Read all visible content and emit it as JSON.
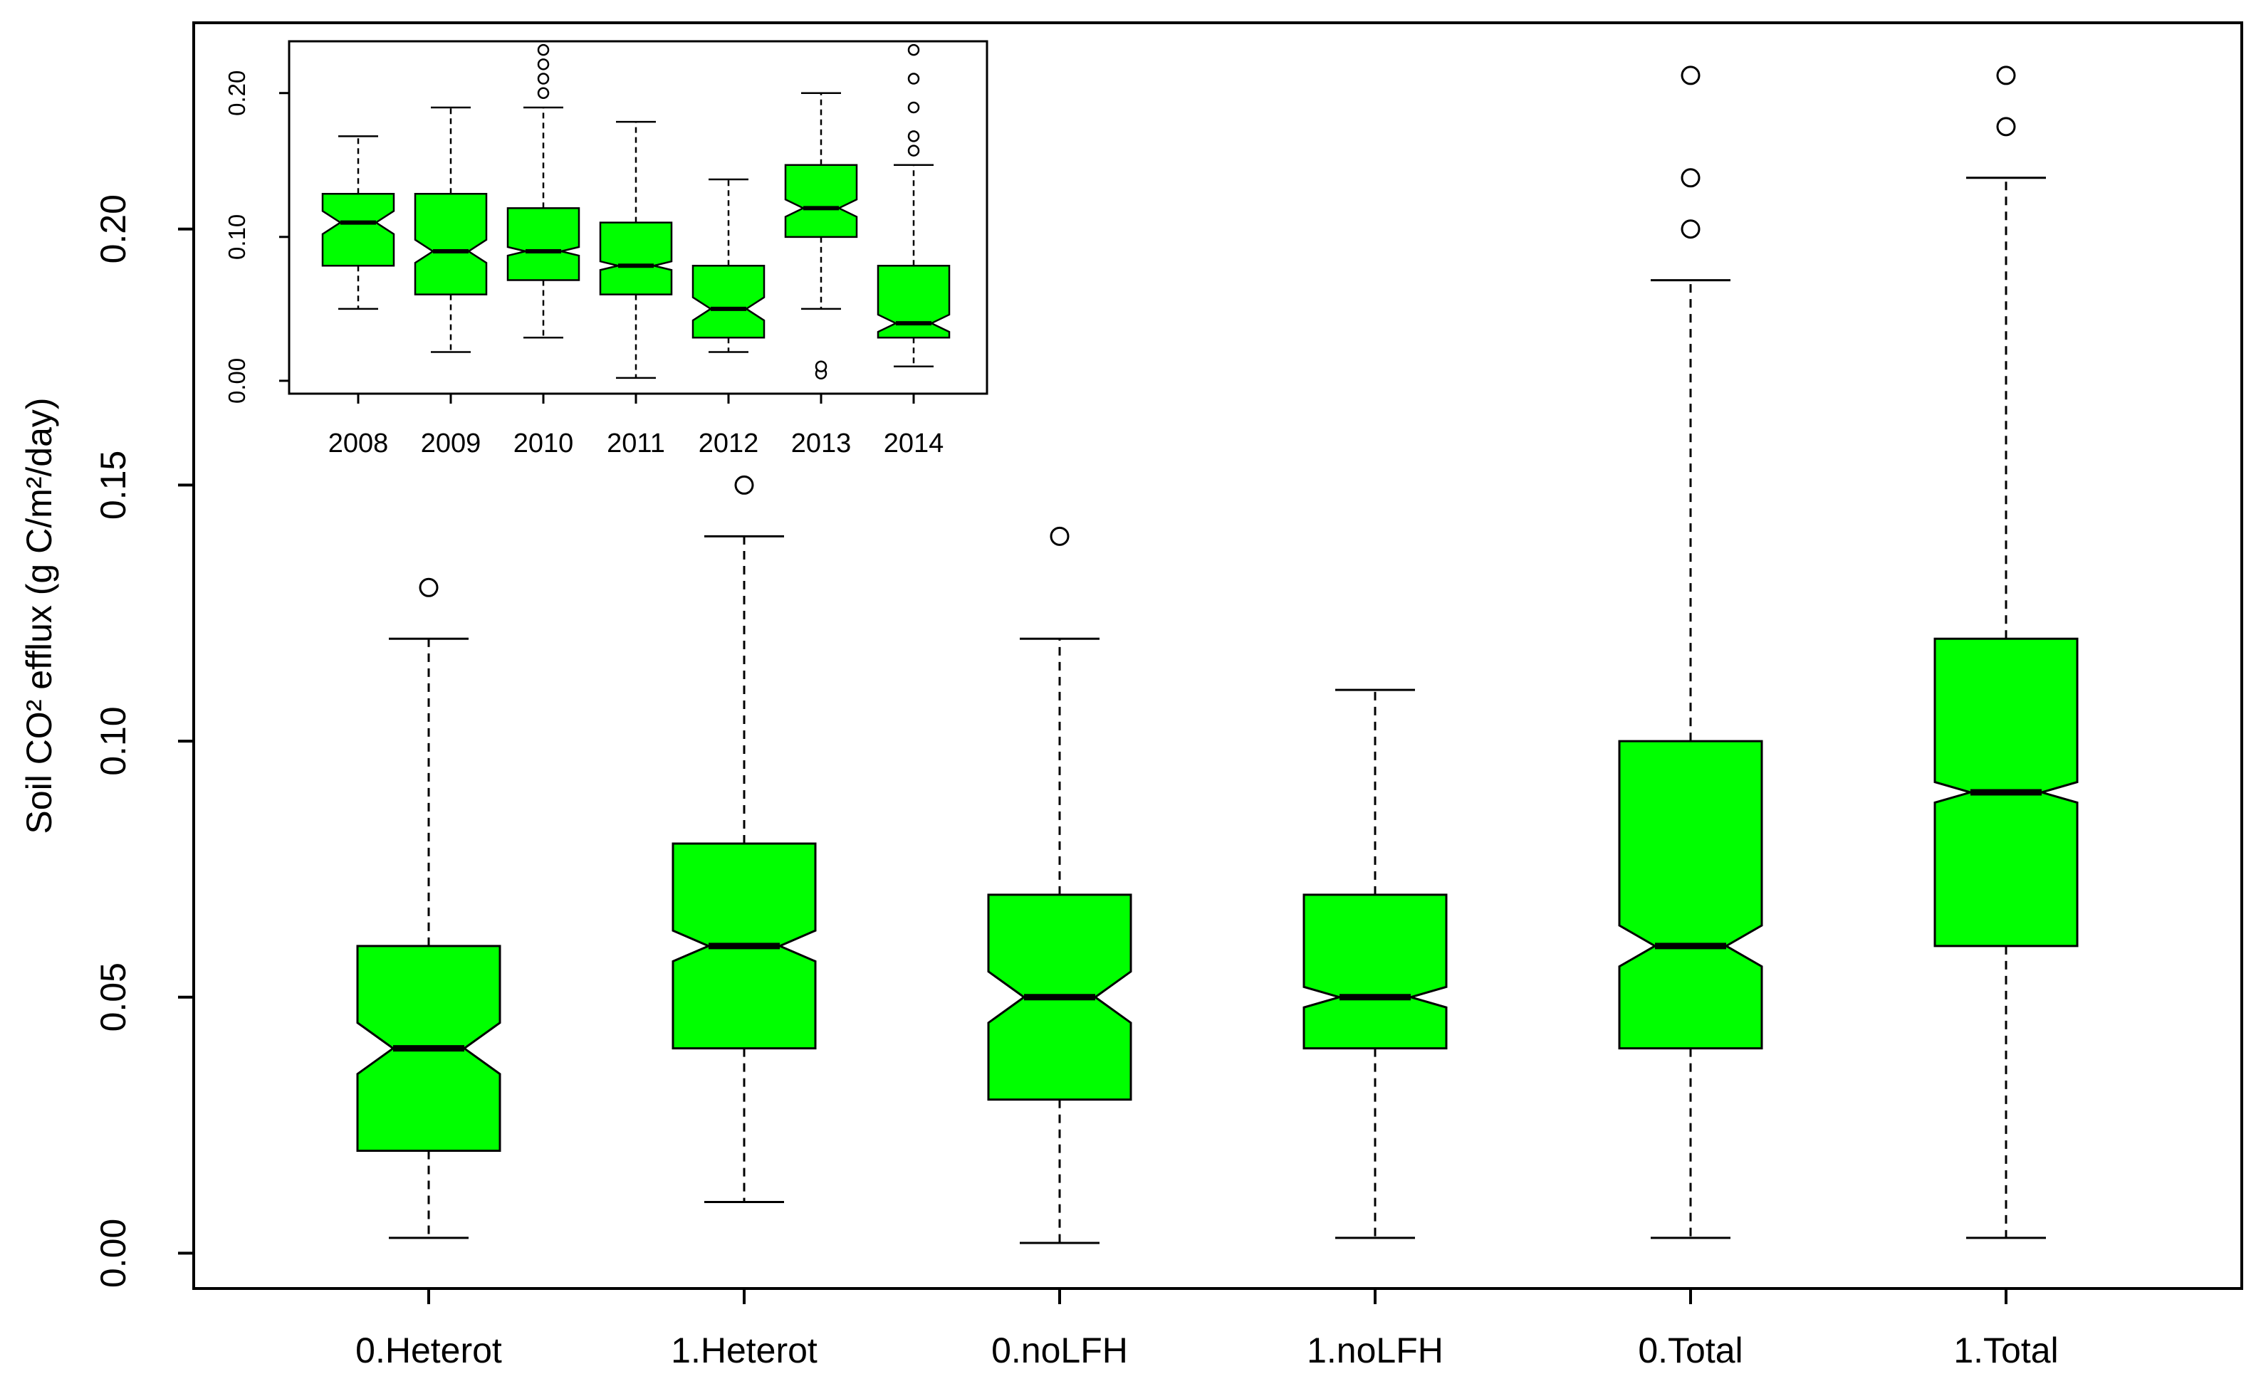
{
  "chart_data": [
    {
      "type": "boxplot",
      "notched": true,
      "ylabel": "Soil CO² efflux  (g C/m²/day)",
      "ylim": [
        -0.003,
        0.24
      ],
      "yticks": [
        0.0,
        0.05,
        0.1,
        0.15,
        0.2
      ],
      "ytick_labels": [
        "0.00",
        "0.05",
        "0.10",
        "0.15",
        "0.20"
      ],
      "box_color": "#00ff00",
      "categories": [
        "0.Heterot",
        "1.Heterot",
        "0.noLFH",
        "1.noLFH",
        "0.Total",
        "1.Total"
      ],
      "boxes": [
        {
          "whisker_low": 0.003,
          "q1": 0.02,
          "median": 0.04,
          "q3": 0.06,
          "whisker_high": 0.12,
          "notch": 0.005,
          "outliers": [
            0.13
          ]
        },
        {
          "whisker_low": 0.01,
          "q1": 0.04,
          "median": 0.06,
          "q3": 0.08,
          "whisker_high": 0.14,
          "notch": 0.003,
          "outliers": [
            0.15
          ]
        },
        {
          "whisker_low": 0.002,
          "q1": 0.03,
          "median": 0.05,
          "q3": 0.07,
          "whisker_high": 0.12,
          "notch": 0.005,
          "outliers": [
            0.14
          ]
        },
        {
          "whisker_low": 0.003,
          "q1": 0.04,
          "median": 0.05,
          "q3": 0.07,
          "whisker_high": 0.11,
          "notch": 0.002,
          "outliers": []
        },
        {
          "whisker_low": 0.003,
          "q1": 0.04,
          "median": 0.06,
          "q3": 0.1,
          "whisker_high": 0.19,
          "notch": 0.004,
          "outliers": [
            0.2,
            0.21,
            0.23
          ]
        },
        {
          "whisker_low": 0.003,
          "q1": 0.06,
          "median": 0.09,
          "q3": 0.12,
          "whisker_high": 0.21,
          "notch": 0.002,
          "outliers": [
            0.22,
            0.23
          ]
        }
      ]
    },
    {
      "type": "boxplot",
      "notched": true,
      "inset": true,
      "ylim": [
        -0.005,
        0.235
      ],
      "yticks": [
        0.0,
        0.1,
        0.2
      ],
      "ytick_labels": [
        "0.00",
        "0.10",
        "0.20"
      ],
      "box_color": "#00ff00",
      "categories": [
        "2008",
        "2009",
        "2010",
        "2011",
        "2012",
        "2013",
        "2014"
      ],
      "boxes": [
        {
          "whisker_low": 0.05,
          "q1": 0.08,
          "median": 0.11,
          "q3": 0.13,
          "whisker_high": 0.17,
          "notch": 0.008,
          "outliers": []
        },
        {
          "whisker_low": 0.02,
          "q1": 0.06,
          "median": 0.09,
          "q3": 0.13,
          "whisker_high": 0.19,
          "notch": 0.008,
          "outliers": []
        },
        {
          "whisker_low": 0.03,
          "q1": 0.07,
          "median": 0.09,
          "q3": 0.12,
          "whisker_high": 0.19,
          "notch": 0.003,
          "outliers": [
            0.2,
            0.21,
            0.22,
            0.23
          ]
        },
        {
          "whisker_low": 0.002,
          "q1": 0.06,
          "median": 0.08,
          "q3": 0.11,
          "whisker_high": 0.18,
          "notch": 0.003,
          "outliers": []
        },
        {
          "whisker_low": 0.02,
          "q1": 0.03,
          "median": 0.05,
          "q3": 0.08,
          "whisker_high": 0.14,
          "notch": 0.008,
          "outliers": []
        },
        {
          "whisker_low": 0.05,
          "q1": 0.1,
          "median": 0.12,
          "q3": 0.15,
          "whisker_high": 0.2,
          "notch": 0.006,
          "outliers": [
            0.005,
            0.01
          ]
        },
        {
          "whisker_low": 0.01,
          "q1": 0.03,
          "median": 0.04,
          "q3": 0.08,
          "whisker_high": 0.15,
          "notch": 0.006,
          "outliers": [
            0.16,
            0.17,
            0.19,
            0.21,
            0.23
          ]
        }
      ]
    }
  ]
}
